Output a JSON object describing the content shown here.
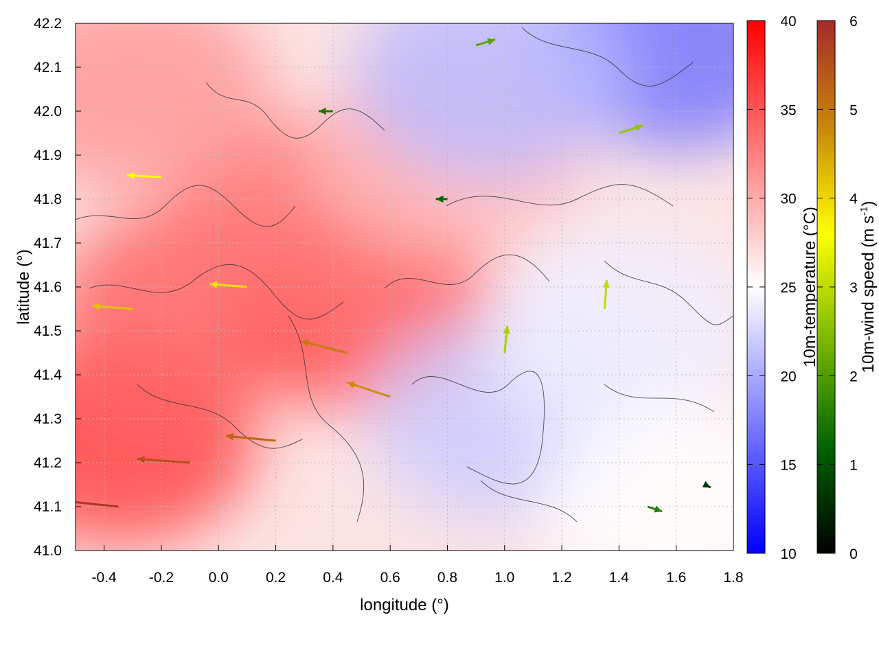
{
  "chart_data": {
    "type": "heatmap",
    "xlabel": "longitude (°)",
    "ylabel": "latitude (°)",
    "xlim": [
      -0.5,
      1.8
    ],
    "ylim": [
      41.0,
      42.2
    ],
    "x_ticks": [
      -0.4,
      -0.2,
      0.0,
      0.2,
      0.4,
      0.6,
      0.8,
      1.0,
      1.2,
      1.4,
      1.6,
      1.8
    ],
    "x_tick_labels": [
      "-0.4",
      "-0.2",
      "0.0",
      "0.2",
      "0.4",
      "0.6",
      "0.8",
      "1.0",
      "1.2",
      "1.4",
      "1.6",
      "1.8"
    ],
    "y_ticks": [
      41.0,
      41.1,
      41.2,
      41.3,
      41.4,
      41.5,
      41.6,
      41.7,
      41.8,
      41.9,
      42.0,
      42.1,
      42.2
    ],
    "y_tick_labels": [
      "41.0",
      "41.1",
      "41.2",
      "41.3",
      "41.4",
      "41.5",
      "41.6",
      "41.7",
      "41.8",
      "41.9",
      "42.0",
      "42.1",
      "42.2"
    ],
    "grid": true,
    "temperature": {
      "label": "10m-temperature (°C)",
      "range": [
        10,
        40
      ],
      "ticks": [
        10,
        15,
        20,
        25,
        30,
        35,
        40
      ],
      "tick_labels": [
        "10",
        "15",
        "20",
        "25",
        "30",
        "35",
        "40"
      ],
      "colors": {
        "low": "#0000ff",
        "mid": "#ffffff",
        "high": "#ff0000"
      },
      "regions": [
        {
          "lon": -0.35,
          "lat": 41.25,
          "value": 36
        },
        {
          "lon": -0.1,
          "lat": 41.55,
          "value": 34
        },
        {
          "lon": 0.5,
          "lat": 41.55,
          "value": 35
        },
        {
          "lon": 0.3,
          "lat": 41.75,
          "value": 33
        },
        {
          "lon": -0.3,
          "lat": 42.05,
          "value": 31
        },
        {
          "lon": 0.8,
          "lat": 41.9,
          "value": 29
        },
        {
          "lon": 1.0,
          "lat": 41.3,
          "value": 22
        },
        {
          "lon": 1.6,
          "lat": 42.15,
          "value": 17
        },
        {
          "lon": 0.95,
          "lat": 42.08,
          "value": 21
        },
        {
          "lon": 1.4,
          "lat": 41.5,
          "value": 24
        },
        {
          "lon": 1.6,
          "lat": 41.1,
          "value": 25
        }
      ]
    },
    "wind_speed": {
      "label": "10m-wind speed (m s",
      "label_superscript": "-1",
      "label_end": ")",
      "range": [
        0,
        6
      ],
      "ticks": [
        0,
        1,
        2,
        3,
        4,
        5,
        6
      ],
      "tick_labels": [
        "0",
        "1",
        "2",
        "3",
        "4",
        "5",
        "6"
      ],
      "colors": [
        "#000000",
        "#006400",
        "#7ab800",
        "#ffff00",
        "#c8860a",
        "#a52a2a"
      ],
      "vectors": [
        {
          "lon": -0.35,
          "lat": 41.1,
          "u": -5.8,
          "v": 0.6
        },
        {
          "lon": -0.1,
          "lat": 41.2,
          "u": -5.5,
          "v": 0.4
        },
        {
          "lon": 0.2,
          "lat": 41.25,
          "u": -5.2,
          "v": 0.5
        },
        {
          "lon": 0.45,
          "lat": 41.45,
          "u": -4.8,
          "v": 1.2
        },
        {
          "lon": 0.6,
          "lat": 41.35,
          "u": -4.5,
          "v": 1.5
        },
        {
          "lon": -0.3,
          "lat": 41.55,
          "u": -4.2,
          "v": 0.3
        },
        {
          "lon": 0.1,
          "lat": 41.6,
          "u": -3.9,
          "v": 0.3
        },
        {
          "lon": -0.2,
          "lat": 41.85,
          "u": -3.6,
          "v": 0.2
        },
        {
          "lon": 0.4,
          "lat": 42.0,
          "u": -1.5,
          "v": 0.0
        },
        {
          "lon": 0.8,
          "lat": 41.8,
          "u": -1.2,
          "v": 0.0
        },
        {
          "lon": 1.0,
          "lat": 41.45,
          "u": 0.3,
          "v": 2.8
        },
        {
          "lon": 1.35,
          "lat": 41.55,
          "u": 0.2,
          "v": 3.0
        },
        {
          "lon": 1.5,
          "lat": 41.1,
          "u": 1.5,
          "v": -0.5
        },
        {
          "lon": 1.7,
          "lat": 41.15,
          "u": 0.6,
          "v": -0.3
        },
        {
          "lon": 1.4,
          "lat": 41.95,
          "u": 2.5,
          "v": 0.8
        },
        {
          "lon": 0.9,
          "lat": 42.15,
          "u": 2.0,
          "v": 0.6
        }
      ]
    }
  }
}
